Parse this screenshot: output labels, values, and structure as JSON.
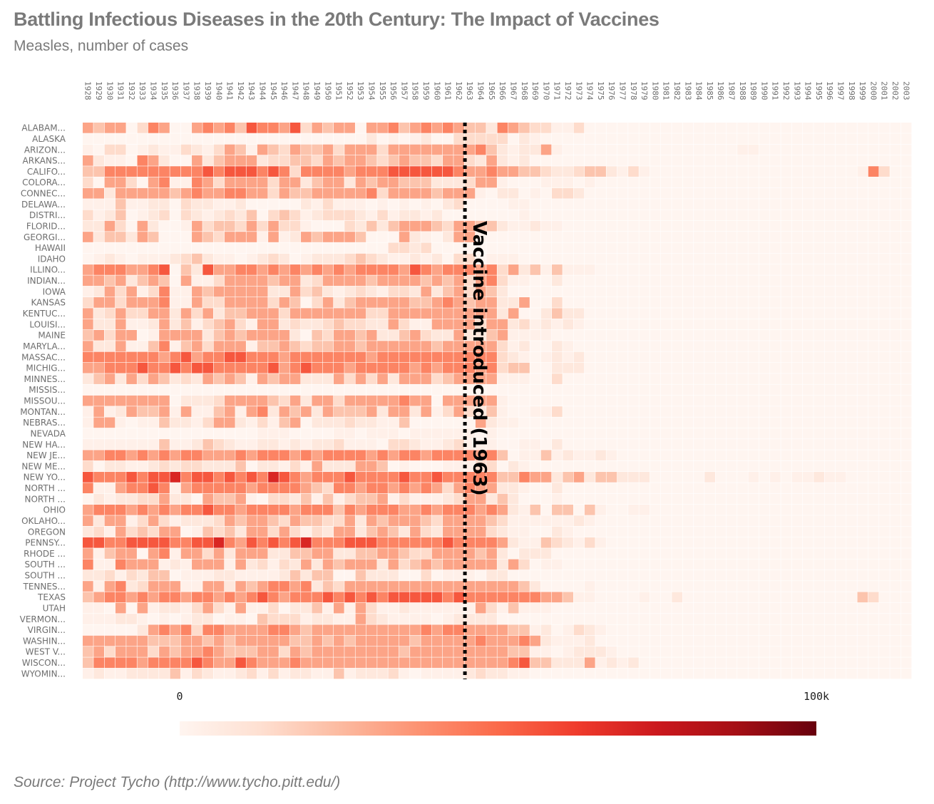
{
  "header": {
    "title": "Battling Infectious Diseases in the 20th Century: The Impact of Vaccines",
    "subtitle": "Measles, number of cases"
  },
  "footer": {
    "source": "Source: Project Tycho (http://www.tycho.pitt.edu/)"
  },
  "colors": {
    "text": "#7a7a7a",
    "scale_low": "#fff5f0",
    "scale_high": "#67000d",
    "annotation": "#000000"
  },
  "chart_data": {
    "type": "heatmap",
    "title": "Battling Infectious Diseases in the 20th Century: The Impact of Vaccines",
    "subtitle": "Measles, number of cases",
    "x": [
      "1928",
      "1929",
      "1930",
      "1931",
      "1932",
      "1933",
      "1934",
      "1935",
      "1936",
      "1937",
      "1938",
      "1939",
      "1940",
      "1941",
      "1942",
      "1943",
      "1944",
      "1945",
      "1946",
      "1947",
      "1948",
      "1949",
      "1950",
      "1951",
      "1952",
      "1953",
      "1954",
      "1955",
      "1956",
      "1957",
      "1958",
      "1959",
      "1960",
      "1961",
      "1962",
      "1963",
      "1964",
      "1965",
      "1966",
      "1967",
      "1968",
      "1969",
      "1970",
      "1971",
      "1972",
      "1973",
      "1974",
      "1975",
      "1976",
      "1977",
      "1978",
      "1979",
      "1980",
      "1981",
      "1982",
      "1983",
      "1984",
      "1985",
      "1986",
      "1987",
      "1988",
      "1989",
      "1990",
      "1991",
      "1992",
      "1993",
      "1994",
      "1995",
      "1996",
      "1997",
      "1998",
      "1999",
      "2000",
      "2001",
      "2002",
      "2003"
    ],
    "y": [
      "ALABAM...",
      "ALASKA",
      "ARIZON...",
      "ARKANS...",
      "CALIFO...",
      "COLORA...",
      "CONNEC...",
      "DELAWA...",
      "DISTRI...",
      "FLORID...",
      "GEORGI...",
      "HAWAII",
      "IDAHO",
      "ILLINO...",
      "INDIAN...",
      "IOWA",
      "KANSAS",
      "KENTUC...",
      "LOUISI...",
      "MAINE",
      "MARYLA...",
      "MASSAC...",
      "MICHIG...",
      "MINNES...",
      "MISSIS...",
      "MISSOU...",
      "MONTAN...",
      "NEBRAS...",
      "NEVADA",
      "NEW HA...",
      "NEW JE...",
      "NEW ME...",
      "NEW YO...",
      "NORTH ...",
      "NORTH ...",
      "OHIO",
      "OKLAHO...",
      "OREGON",
      "PENNSY...",
      "RHODE ...",
      "SOUTH ...",
      "SOUTH ...",
      "TENNES...",
      "TEXAS",
      "UTAH",
      "VERMON...",
      "VIRGIN...",
      "WASHIN...",
      "WEST V...",
      "WISCON...",
      "WYOMIN..."
    ],
    "levels": [
      0,
      3000,
      8000,
      14000,
      22000,
      32000,
      42000,
      55000,
      70000,
      90000
    ],
    "rows": [
      "5455036500565647665735455055645656544265433113000000000000000000000000000000",
      "0000000000000000000000000020101200333330210000000000000000000000000000000000",
      "1033012113213541543544535553555555556421225100000000000000001100000000000000",
      "5211065200524555233443545543454435532521200000000000000000000000000000000000",
      "4466666666676777676366665666777777655655443223442131000000000000000000016300",
      "3055305611653555535524552545544422235510001110100000000000000000000000000000",
      "5525555545655665535445555563555545551022010332000000000000000000000000000000",
      "1114112203221120000021311101010102300001100000000000000000000000000000000000",
      "3124012303212324034312333213122120000000100000000000000000000000000000000000",
      "2253052001534435353310003242455543554421121100000000000000000000000000000000",
      "5244254000543555151254555400052102551000000000000000000000000000000000000000",
      "0000000000000000000000000000332300000000000000000000000000000000000000000000",
      "0121011123421101232012223432112120330111000000000000000000000000000000000000",
      "5666556704275566565656565666657656665635241411100000000000000000000000000000",
      "5545245405113555545523555545555454535631100200000000000000000000000000000000",
      "1253513611545555522534212321332524535420000000000000000000000000000000000000",
      "3553555611533555535403524555554456545522500300000000000000000000000000000000",
      "5235335525352445553555555533555555555525002422000000000000000000000000000000",
      "5225112524134531552322343322531155553552312121000000000000000000000000000000",
      "4535501555524545555204355452245322522451111000000000000000000000000000000000",
      "5225114614535551445434455455555545555531200210000000000000000000000000000000",
      "6666666567566776665666666656666666666632101212000000000000000000000000000000",
      "5566676676776666675676665666665656665634400222000000000000000000000000000000",
      "2452535423254541545522253535255534555511100300000000000000000000000000000000",
      "0000000000000000000000000000000000000000000000000000000000000000000000000000",
      "5555555502223555543525535555565505555510000000000000000000000000000000000000",
      "1512544515114515625452544452552513532410011300000000000000000000000000000000",
      "1551011422135521314502223221140000005211000000000000000000000000000000000000",
      "0000000000000000111000011011101111110100000000000000000000000000000000000000",
      "1111111411243211221212231110332112311100110200000000000000000000000000000000",
      "5566565656655565666565666656566566665640114121121000000000000000000000000000",
      "3022112323322240221315222554010001113302100000000000000000000000000000000000",
      "7666767786776767687656667666676676666644655245244222000002000101011211000000",
      "6115667615666665666654366566565653565522100200000000000000000000000000000000",
      "0212233522054451033241413445131112355242000100000000000000000000000000000000",
      "5666565656676656666566646566655656665652140440410011000000000000000000000000",
      "5255135312223545543544335254555435555431111112100000000000000000000000000000",
      "2315343550143425535313255245425325555321100210000000000000000000000000000000",
      "7766777766778657676786667776666667666652114321310000000000000000000000000000",
      "5145505615535255522445522445543355554520222000000000000000000000000000000000",
      "6116555121555152313252545552534545555525301100000000000000000000000000000000",
      "2231324401112211112424400422200301110220000000000000000000000000000000000000",
      "5156235551155254566562435555555555555555420000100000000000000000000000000000",
      "4566565665665656765666767676777776766666665541100001002000000000000000043000",
      "1105051221353151130224151531121111115314111000000000000000000000000000000000",
      "1112210101220110433312211532111101222200000000000000000000000000000000000000",
      "0000025656366555566545555555555656655554412013210000000000000000000000000000",
      "5555554445545455555445454555554555556555652111200000000000000000000000000000",
      "4535553545565444553545555555545555555554411012221000000000000000000000000000",
      "4666656666765576555655555555555555555556744222512120000000000000000000000000",
      "1211222241321123131221141222310111123221100000000000000000000000000000000000"
    ],
    "color_scale": "Reds",
    "domain": [
      0,
      100000
    ],
    "legend": {
      "min_label": "0",
      "max_label": "100k",
      "placement": "bottom-center"
    },
    "annotation": {
      "year": "1963",
      "text": "Vaccine introduced (1963)",
      "style": "dashed vertical line"
    },
    "xlabel": "",
    "ylabel": ""
  }
}
